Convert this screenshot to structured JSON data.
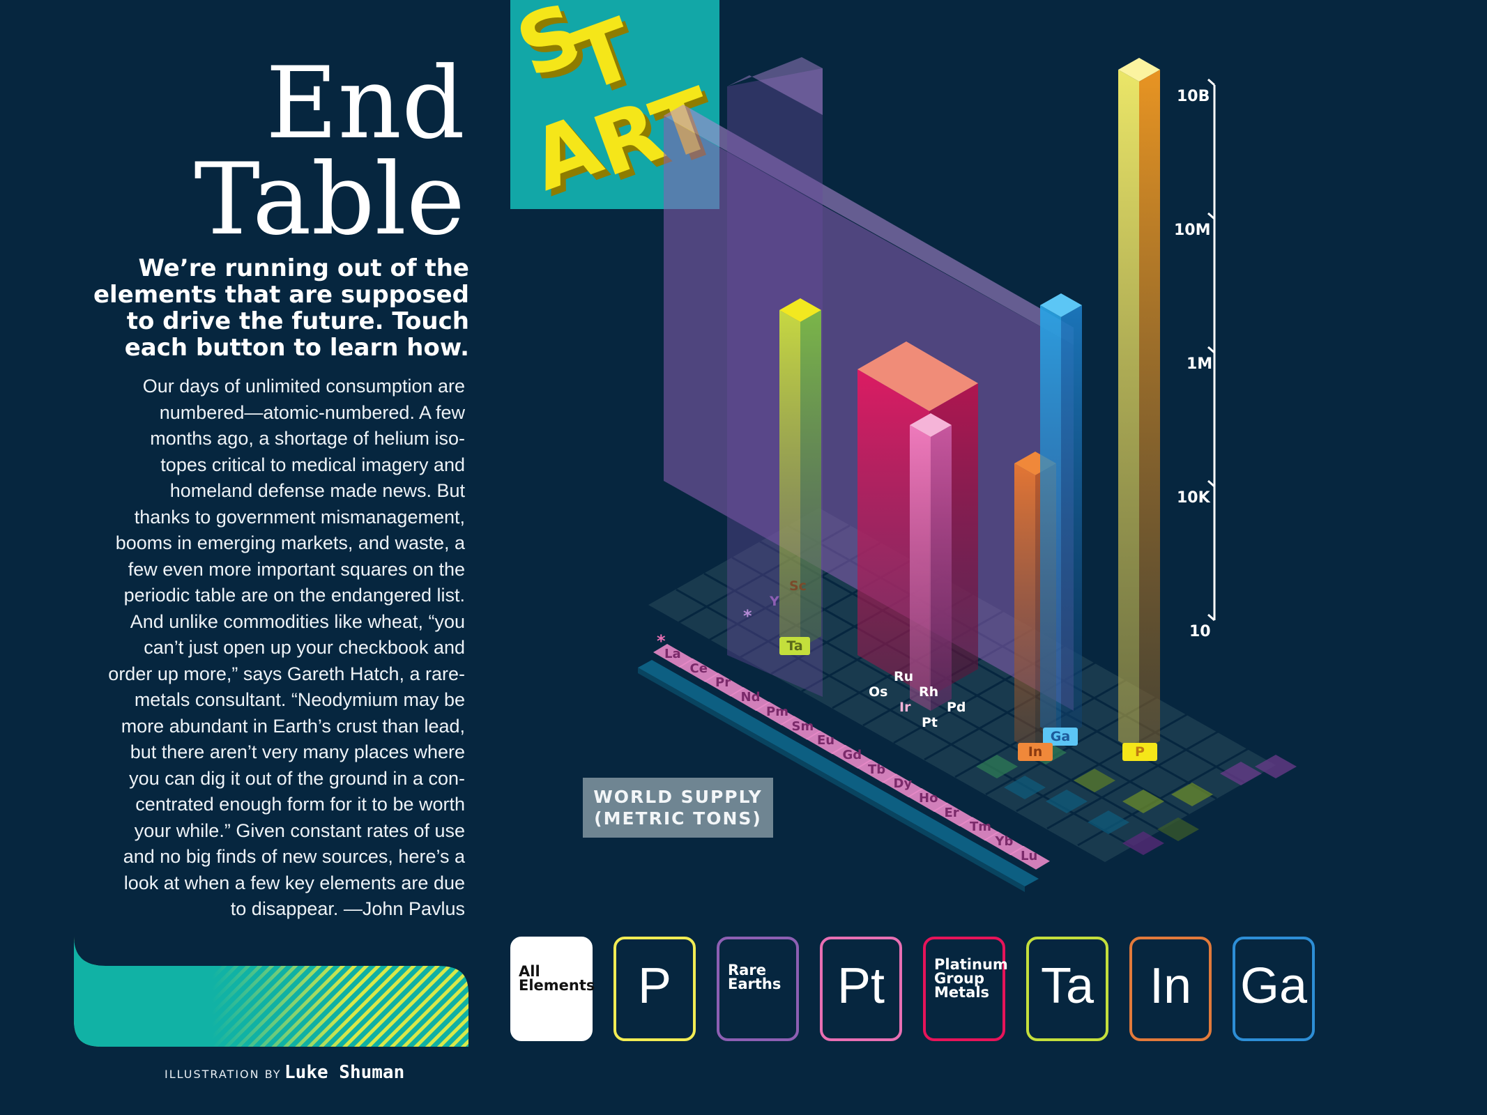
{
  "title": {
    "line1": "End",
    "line2": "Table"
  },
  "subhead": {
    "lines": [
      "We’re running out of the",
      "elements that are supposed",
      "to drive the future. Touch",
      "each button to learn how."
    ]
  },
  "body": {
    "lines": [
      "Our days of unlimited consumption are",
      "numbered—atomic-numbered. A few",
      "months ago, a shortage of helium iso-",
      "topes critical to medical imagery and",
      "homeland defense made news. But",
      "thanks to government mismanagement,",
      "booms in emerging markets, and waste, a",
      "few even more important squares on the",
      "periodic table are on the endangered list.",
      "And unlike commodities like wheat, “you",
      "can’t just open up your checkbook and",
      "order up more,” says Gareth Hatch, a rare-",
      "metals consultant. “Neodymium may be",
      "more abundant in Earth’s crust than lead,",
      "but there aren’t very many places where",
      "you can dig it out of the ground in a con-",
      "centrated enough form for it to be worth",
      "your while.” Given constant rates of use",
      "and no big finds of new sources, here’s a",
      "look at when a few key elements are due",
      "to disappear. —John Pavlus"
    ]
  },
  "credit": {
    "prefix": "ILLUSTRATION BY",
    "name": "Luke Shuman"
  },
  "start_letters": [
    "S",
    "T",
    "A",
    "R",
    "T"
  ],
  "axis": {
    "ticks": [
      "10B",
      "10M",
      "1M",
      "10K",
      "10"
    ]
  },
  "supply_box": {
    "line1": "WORLD SUPPLY",
    "line2": "(METRIC TONS)"
  },
  "elements_labels": {
    "sc": "Sc",
    "y": "Y",
    "ta": "Ta",
    "asterisk": "*",
    "ru": "Ru",
    "rh": "Rh",
    "os": "Os",
    "ir": "Ir",
    "pd": "Pd",
    "pt": "Pt",
    "ga": "Ga",
    "in": "In",
    "p": "P",
    "lanthanides": [
      "La",
      "Ce",
      "Pr",
      "Nd",
      "Pm",
      "Sm",
      "Eu",
      "Gd",
      "Tb",
      "Dy",
      "Ho",
      "Er",
      "Tm",
      "Yb",
      "Lu"
    ]
  },
  "buttons": [
    {
      "id": "all",
      "label_lines": [
        "All",
        "Elements"
      ],
      "color": "#ffffff"
    },
    {
      "id": "p",
      "symbol": "P",
      "color": "#f2ec54"
    },
    {
      "id": "rare",
      "label_lines": [
        "Rare",
        "Earths"
      ],
      "color": "#8d5fb3"
    },
    {
      "id": "pt",
      "symbol": "Pt",
      "color": "#e86fb3"
    },
    {
      "id": "pgm",
      "label_lines": [
        "Platinum",
        "Group",
        "Metals"
      ],
      "color": "#e6145a"
    },
    {
      "id": "ta",
      "symbol": "Ta",
      "color": "#c4df3c"
    },
    {
      "id": "in",
      "symbol": "In",
      "color": "#e27a3b"
    },
    {
      "id": "ga",
      "symbol": "Ga",
      "color": "#2d8ed6"
    }
  ],
  "colors": {
    "background": "#06263f",
    "teal": "#12a7a7",
    "yellow": "#f2ec54",
    "purple": "#8d5fb3",
    "pink": "#e86fb3",
    "crimson": "#e6145a",
    "lime": "#c4df3c",
    "orange": "#e27a3b",
    "blue": "#2d8ed6"
  }
}
